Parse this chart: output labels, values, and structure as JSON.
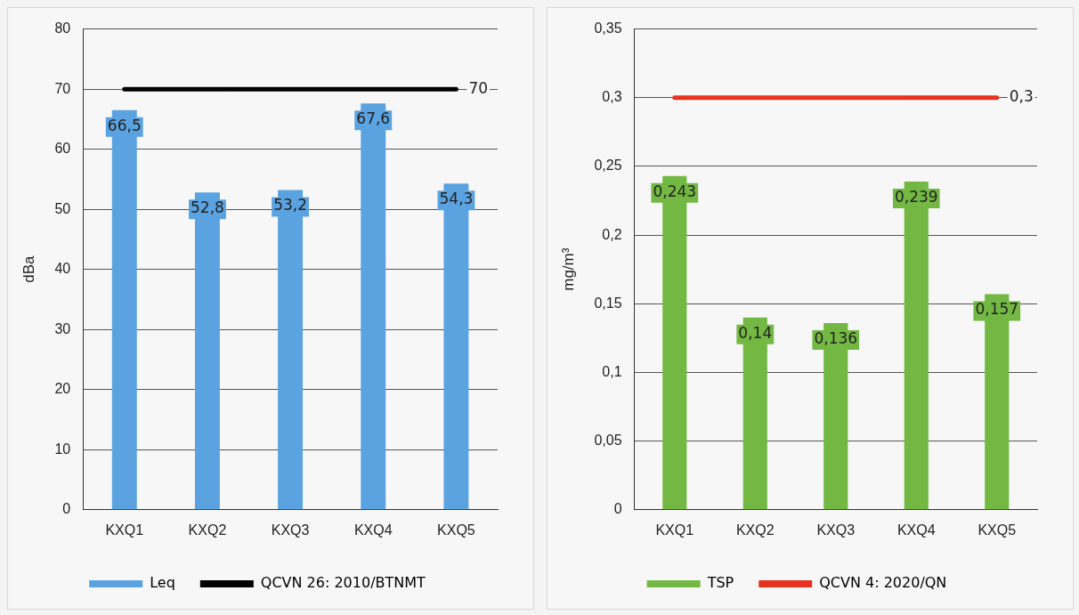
{
  "chart_data": [
    {
      "type": "bar",
      "categories": [
        "KXQ1",
        "KXQ2",
        "KXQ3",
        "KXQ4",
        "KXQ5"
      ],
      "ylabel": "dBa",
      "ylim": [
        0,
        80
      ],
      "yticks": [
        0,
        10,
        20,
        30,
        40,
        50,
        60,
        70,
        80
      ],
      "grid": "y",
      "legend": "bottom",
      "marker": "none",
      "series": [
        {
          "name": "Leq",
          "color": "#5ba3e0",
          "values": [
            66.5,
            52.8,
            53.2,
            67.6,
            54.3
          ],
          "value_labels": [
            "66,5",
            "52,8",
            "53,2",
            "67,6",
            "54,3"
          ]
        },
        {
          "name": "QCVN 26: 2010/BTNMT",
          "type": "line",
          "color": "#000000",
          "values": [
            70,
            70,
            70,
            70,
            70
          ],
          "value_labels": [
            null,
            null,
            null,
            null,
            "70"
          ]
        }
      ]
    },
    {
      "type": "bar",
      "categories": [
        "KXQ1",
        "KXQ2",
        "KXQ3",
        "KXQ4",
        "KXQ5"
      ],
      "ylabel": "mg/m³",
      "ylim": [
        0,
        0.35
      ],
      "yticks": [
        0,
        {
          "value": 0.05,
          "label": "0,05"
        },
        {
          "value": 0.1,
          "label": "0,1"
        },
        {
          "value": 0.15,
          "label": "0,15"
        },
        {
          "value": 0.2,
          "label": "0,2"
        },
        {
          "value": 0.25,
          "label": "0,25"
        },
        {
          "value": 0.3,
          "label": "0,3"
        },
        {
          "value": 0.35,
          "label": "0,35"
        }
      ],
      "grid": "y",
      "legend": "bottom",
      "marker": "none",
      "series": [
        {
          "name": "TSP",
          "color": "#72b843",
          "values": [
            0.243,
            0.14,
            0.136,
            0.239,
            0.157
          ],
          "value_labels": [
            "0,243",
            "0,14",
            "0,136",
            "0,239",
            "0,157"
          ]
        },
        {
          "name": "QCVN 4: 2020/QN",
          "type": "line",
          "color": "#e8321e",
          "values": [
            0.3,
            0.3,
            0.3,
            0.3,
            0.3
          ],
          "value_labels": [
            null,
            null,
            null,
            null,
            "0,3"
          ]
        }
      ]
    }
  ]
}
